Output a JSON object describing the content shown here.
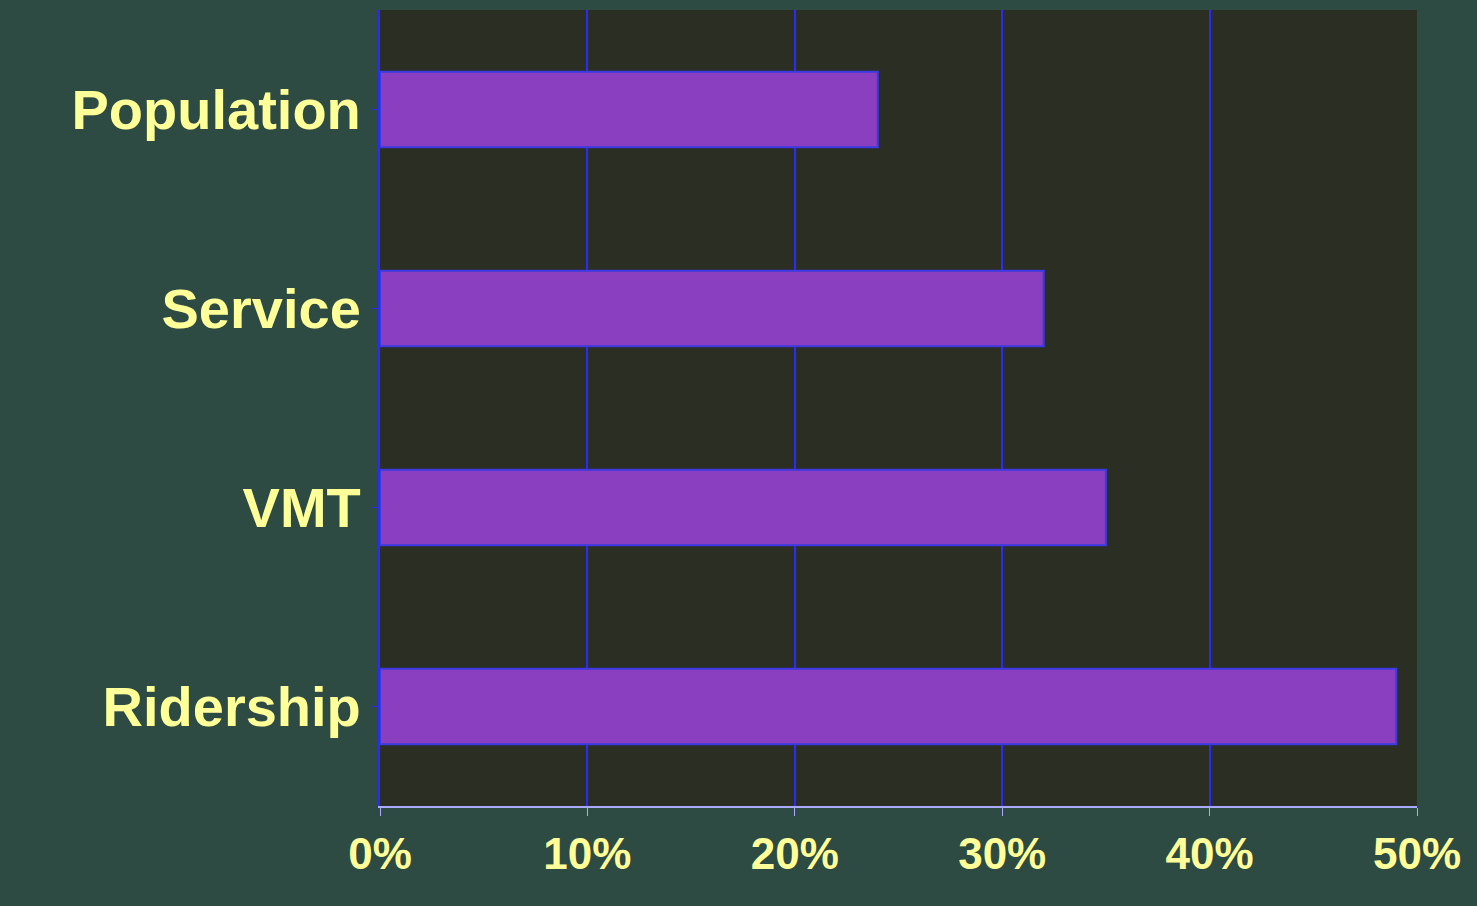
{
  "chart_data": {
    "type": "bar",
    "orientation": "horizontal",
    "categories": [
      "Population",
      "Service",
      "VMT",
      "Ridership"
    ],
    "values": [
      24,
      32,
      35,
      49
    ],
    "color": "#8a3fc0",
    "xlim": [
      0,
      50
    ],
    "xticks": [
      {
        "value": 0,
        "label": "0%"
      },
      {
        "value": 10,
        "label": "10%"
      },
      {
        "value": 20,
        "label": "20%"
      },
      {
        "value": 30,
        "label": "30%"
      },
      {
        "value": 40,
        "label": "40%"
      },
      {
        "value": 50,
        "label": "50%"
      }
    ],
    "grid": true
  }
}
